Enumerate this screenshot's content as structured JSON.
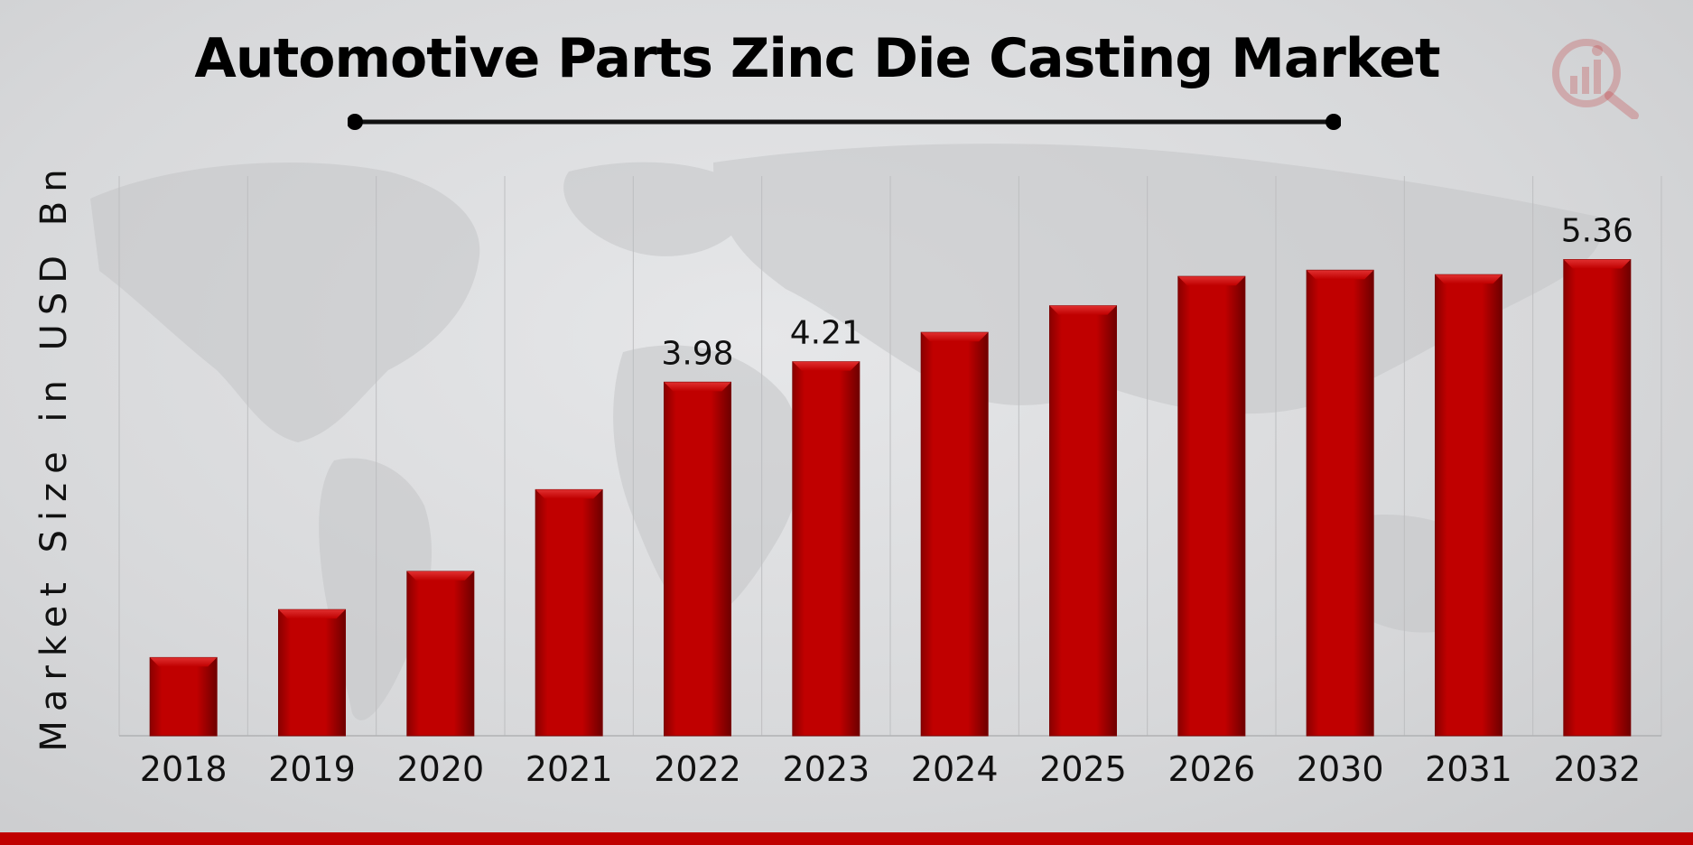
{
  "colors": {
    "bar": "#c00000",
    "bar_dark": "#7a0000",
    "footer_band": "#c00000",
    "logo": "#c0262b"
  },
  "logo": {
    "icon": "magnifier-bar-chart-icon"
  },
  "chart_data": {
    "type": "bar",
    "title": "Automotive Parts Zinc Die Casting Market",
    "xlabel": "",
    "ylabel": "Market Size in USD Bn",
    "categories": [
      "2018",
      "2019",
      "2020",
      "2021",
      "2022",
      "2023",
      "2024",
      "2025",
      "2026",
      "2030",
      "2031",
      "2032"
    ],
    "values": [
      0.88,
      1.42,
      1.85,
      2.77,
      3.98,
      4.21,
      4.54,
      4.84,
      5.17,
      5.24,
      5.19,
      5.36
    ],
    "data_labels": [
      "",
      "",
      "",
      "",
      "3.98",
      "4.21",
      "",
      "",
      "",
      "",
      "",
      "5.36"
    ],
    "ylim": [
      0,
      6.3
    ],
    "grid": "vertical",
    "legend": "none"
  }
}
